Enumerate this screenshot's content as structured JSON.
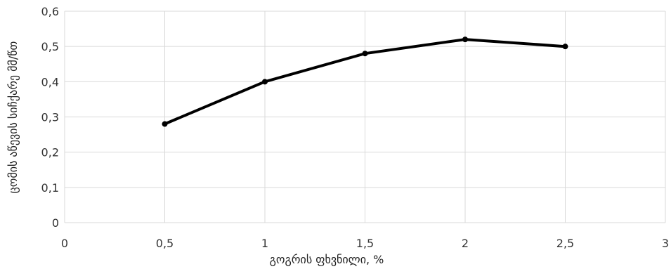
{
  "chart_data": {
    "type": "line",
    "title": "",
    "xlabel": "გოგრის ფხვნილი, %",
    "ylabel": "ცომის აწევის სიჩქარე მმ/წთ",
    "xlim": [
      0,
      3
    ],
    "ylim": [
      0,
      0.6
    ],
    "x_ticks": [
      "0",
      "0,5",
      "1",
      "1,5",
      "2",
      "2,5",
      "3"
    ],
    "y_ticks": [
      "0",
      "0,1",
      "0,2",
      "0,3",
      "0,4",
      "0,5",
      "0,6"
    ],
    "grid": true,
    "legend": "none",
    "series": [
      {
        "x": [
          0.5,
          1,
          1.5,
          2,
          2.5
        ],
        "y": [
          0.28,
          0.4,
          0.48,
          0.52,
          0.5
        ]
      }
    ],
    "colors": {
      "line": "#000000",
      "grid": "#d9d9d9"
    }
  }
}
